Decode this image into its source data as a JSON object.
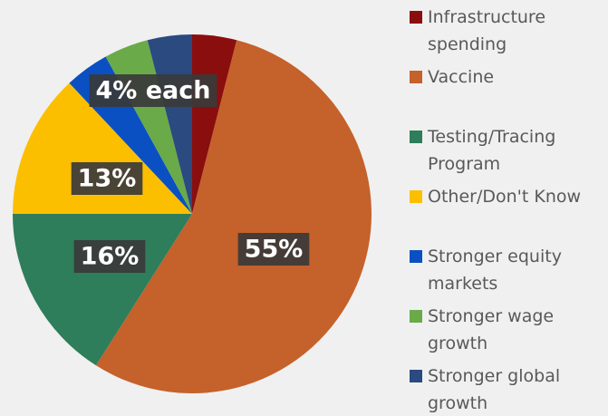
{
  "chart_data": {
    "type": "pie",
    "categories": [
      "Infrastructure spending",
      "Vaccine",
      "Testing/Tracing Program",
      "Other/Don't Know",
      "Stronger equity markets",
      "Stronger wage growth",
      "Stronger global growth"
    ],
    "values": [
      4,
      55,
      16,
      13,
      4,
      4,
      4
    ],
    "value_labels": [
      null,
      "55%",
      "16%",
      "13%",
      null,
      null,
      null
    ],
    "colors": [
      "#8b0e0e",
      "#c5612a",
      "#2e7d5b",
      "#fcbf00",
      "#0a50c2",
      "#6aaa48",
      "#2a4a80"
    ],
    "annotation": "4% each"
  }
}
